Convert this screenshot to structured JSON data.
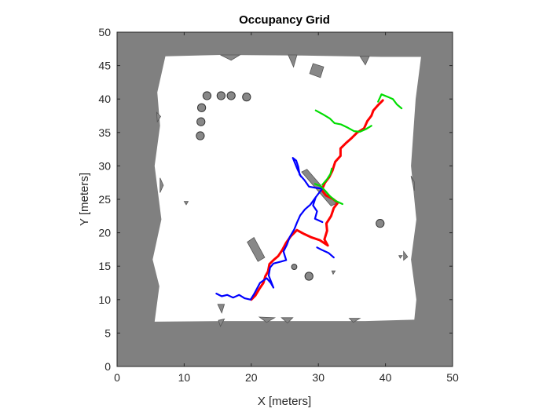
{
  "chart_data": {
    "type": "occupancy-map",
    "title": "Occupancy Grid",
    "xlabel": "X [meters]",
    "ylabel": "Y [meters]",
    "xlim": [
      0,
      50
    ],
    "ylim": [
      0,
      50
    ],
    "xticks": [
      0,
      10,
      20,
      30,
      40,
      50
    ],
    "yticks": [
      0,
      5,
      10,
      15,
      20,
      25,
      30,
      35,
      40,
      45,
      50
    ],
    "colors": {
      "occupied": "#808080",
      "free": "#ffffff",
      "obstacle": "#888888",
      "path_red": "#ff0000",
      "path_blue": "#0000ff",
      "path_green": "#00dd00"
    },
    "free_region": [
      [
        7.2,
        46.4
      ],
      [
        15.5,
        46.6
      ],
      [
        27.5,
        46.5
      ],
      [
        39.5,
        46.3
      ],
      [
        45.3,
        46.3
      ],
      [
        44.5,
        40
      ],
      [
        43.8,
        30
      ],
      [
        44.6,
        22
      ],
      [
        43.8,
        16
      ],
      [
        44.6,
        10
      ],
      [
        44.3,
        7
      ],
      [
        37,
        6.8
      ],
      [
        27,
        6.8
      ],
      [
        15.5,
        6.8
      ],
      [
        5.6,
        6.7
      ],
      [
        6.3,
        12
      ],
      [
        5.3,
        16
      ],
      [
        6.6,
        22
      ],
      [
        5.6,
        30
      ],
      [
        6.4,
        36
      ],
      [
        6.0,
        41
      ],
      [
        7.2,
        46.4
      ]
    ],
    "circular_obstacles": [
      {
        "x": 13.4,
        "y": 40.5,
        "r": 0.6
      },
      {
        "x": 15.5,
        "y": 40.5,
        "r": 0.6
      },
      {
        "x": 17.0,
        "y": 40.5,
        "r": 0.6
      },
      {
        "x": 19.3,
        "y": 40.3,
        "r": 0.6
      },
      {
        "x": 12.6,
        "y": 38.7,
        "r": 0.6
      },
      {
        "x": 12.5,
        "y": 36.6,
        "r": 0.6
      },
      {
        "x": 12.4,
        "y": 34.5,
        "r": 0.6
      },
      {
        "x": 39.2,
        "y": 21.4,
        "r": 0.6
      },
      {
        "x": 28.6,
        "y": 13.5,
        "r": 0.6
      },
      {
        "x": 26.4,
        "y": 14.9,
        "r": 0.4
      }
    ],
    "polygon_obstacles": [
      [
        [
          29.2,
          45.3
        ],
        [
          30.8,
          44.8
        ],
        [
          30.3,
          43.2
        ],
        [
          28.7,
          43.8
        ]
      ],
      [
        [
          19.4,
          18.6
        ],
        [
          20.4,
          19.3
        ],
        [
          22.0,
          16.3
        ],
        [
          21.0,
          15.7
        ]
      ],
      [
        [
          27.5,
          29.1
        ],
        [
          28.3,
          29.5
        ],
        [
          32.7,
          24.4
        ],
        [
          31.9,
          24.0
        ]
      ],
      [
        [
          25.5,
          46.6
        ],
        [
          26.8,
          46.6
        ],
        [
          26.3,
          44.8
        ]
      ],
      [
        [
          15.4,
          46.6
        ],
        [
          18.3,
          46.6
        ],
        [
          17.0,
          45.8
        ]
      ],
      [
        [
          36.2,
          46.4
        ],
        [
          37.6,
          46.4
        ],
        [
          37.0,
          45.1
        ]
      ],
      [
        [
          6.4,
          28.2
        ],
        [
          6.9,
          27.1
        ],
        [
          6.4,
          26.0
        ]
      ],
      [
        [
          43.8,
          28.5
        ],
        [
          44.3,
          27.6
        ],
        [
          44.3,
          26.3
        ]
      ],
      [
        [
          5.9,
          38.0
        ],
        [
          6.5,
          37.4
        ],
        [
          6.0,
          36.6
        ]
      ],
      [
        [
          42.7,
          17.2
        ],
        [
          43.3,
          16.4
        ],
        [
          42.7,
          15.9
        ]
      ],
      [
        [
          21.2,
          7.4
        ],
        [
          23.5,
          7.3
        ],
        [
          22.3,
          6.6
        ]
      ],
      [
        [
          24.5,
          7.3
        ],
        [
          26.2,
          7.3
        ],
        [
          25.4,
          6.5
        ]
      ],
      [
        [
          34.6,
          7.2
        ],
        [
          36.2,
          7.2
        ],
        [
          35.2,
          6.6
        ]
      ],
      [
        [
          15.0,
          9.3
        ],
        [
          16.0,
          9.3
        ],
        [
          15.6,
          8.0
        ]
      ],
      [
        [
          15.1,
          6.9
        ],
        [
          16.0,
          7.1
        ],
        [
          15.4,
          6.0
        ]
      ],
      [
        [
          10.0,
          24.7
        ],
        [
          10.6,
          24.7
        ],
        [
          10.3,
          24.2
        ]
      ],
      [
        [
          32.0,
          14.3
        ],
        [
          32.5,
          14.3
        ],
        [
          32.2,
          13.8
        ]
      ],
      [
        [
          42.0,
          16.6
        ],
        [
          42.5,
          16.6
        ],
        [
          42.2,
          16.2
        ]
      ]
    ],
    "paths": [
      {
        "color": "red",
        "points": [
          [
            20.0,
            10.0
          ],
          [
            20.6,
            10.6
          ],
          [
            21.2,
            11.6
          ],
          [
            21.8,
            12.5
          ],
          [
            22.1,
            13.5
          ],
          [
            22.5,
            14.2
          ],
          [
            22.7,
            15.3
          ],
          [
            23.3,
            15.9
          ],
          [
            24.0,
            16.5
          ],
          [
            24.6,
            17.4
          ],
          [
            25.2,
            18.5
          ],
          [
            25.9,
            19.5
          ],
          [
            26.8,
            20.4
          ],
          [
            27.9,
            19.8
          ],
          [
            29.0,
            19.3
          ],
          [
            30.2,
            18.9
          ],
          [
            31.4,
            18.1
          ],
          [
            30.9,
            19.0
          ],
          [
            31.3,
            20.3
          ],
          [
            31.2,
            21.4
          ],
          [
            31.9,
            22.5
          ],
          [
            32.3,
            23.7
          ],
          [
            32.9,
            24.5
          ],
          [
            32.1,
            25.1
          ],
          [
            31.1,
            25.6
          ],
          [
            30.5,
            26.4
          ],
          [
            31.0,
            27.5
          ],
          [
            31.6,
            28.3
          ],
          [
            32.1,
            29.3
          ],
          [
            32.5,
            30.6
          ],
          [
            33.3,
            31.5
          ],
          [
            33.3,
            32.6
          ],
          [
            34.2,
            33.5
          ],
          [
            35.0,
            34.2
          ],
          [
            35.8,
            35.0
          ],
          [
            36.8,
            35.6
          ],
          [
            37.3,
            36.7
          ],
          [
            37.9,
            37.5
          ],
          [
            38.2,
            38.3
          ],
          [
            38.9,
            39.1
          ],
          [
            39.6,
            39.8
          ]
        ]
      },
      {
        "color": "blue",
        "points": [
          [
            14.8,
            10.9
          ],
          [
            15.6,
            10.5
          ],
          [
            16.4,
            10.7
          ],
          [
            17.3,
            10.3
          ],
          [
            18.2,
            10.7
          ],
          [
            19.0,
            10.2
          ],
          [
            19.9,
            10.0
          ],
          [
            20.4,
            10.8
          ],
          [
            21.3,
            12.5
          ],
          [
            22.3,
            13.2
          ],
          [
            22.9,
            12.5
          ],
          [
            23.3,
            11.8
          ],
          [
            22.6,
            13.6
          ],
          [
            22.8,
            14.8
          ],
          [
            23.3,
            15.4
          ],
          [
            24.5,
            15.7
          ],
          [
            25.2,
            15.9
          ],
          [
            24.8,
            17.2
          ],
          [
            25.3,
            18.2
          ],
          [
            25.7,
            19.3
          ],
          [
            26.4,
            20.5
          ],
          [
            26.8,
            21.5
          ],
          [
            27.3,
            22.6
          ],
          [
            28.0,
            23.5
          ],
          [
            28.8,
            24.2
          ],
          [
            29.6,
            25.3
          ],
          [
            30.2,
            26.1
          ],
          [
            30.6,
            26.6
          ],
          [
            29.7,
            26.7
          ],
          [
            28.6,
            26.9
          ],
          [
            27.9,
            27.9
          ],
          [
            27.2,
            28.7
          ],
          [
            27.0,
            29.9
          ],
          [
            26.7,
            30.8
          ],
          [
            26.2,
            31.2
          ],
          [
            26.8,
            29.7
          ],
          [
            27.4,
            28.4
          ]
        ]
      },
      {
        "color": "blue",
        "points": [
          [
            29.6,
            25.3
          ],
          [
            29.2,
            24.1
          ],
          [
            29.8,
            23.2
          ],
          [
            29.5,
            22.1
          ],
          [
            30.6,
            21.6
          ]
        ]
      },
      {
        "color": "blue",
        "points": [
          [
            29.8,
            17.8
          ],
          [
            30.6,
            17.4
          ],
          [
            31.5,
            17.0
          ],
          [
            32.3,
            16.3
          ]
        ]
      },
      {
        "color": "green",
        "points": [
          [
            29.5,
            27.3
          ],
          [
            30.3,
            27.0
          ],
          [
            31.0,
            26.3
          ],
          [
            31.7,
            25.5
          ],
          [
            32.5,
            24.8
          ],
          [
            33.6,
            24.3
          ]
        ]
      },
      {
        "color": "green",
        "points": [
          [
            30.6,
            27.2
          ],
          [
            31.3,
            28.0
          ],
          [
            31.8,
            28.8
          ],
          [
            32.0,
            29.6
          ]
        ]
      },
      {
        "color": "green",
        "points": [
          [
            29.6,
            38.3
          ],
          [
            30.7,
            37.7
          ],
          [
            31.7,
            37.1
          ],
          [
            32.4,
            36.4
          ],
          [
            33.4,
            36.2
          ],
          [
            34.4,
            35.7
          ],
          [
            35.3,
            35.2
          ],
          [
            36.2,
            35.1
          ],
          [
            37.1,
            35.5
          ],
          [
            37.9,
            36.0
          ]
        ]
      },
      {
        "color": "green",
        "points": [
          [
            38.9,
            39.6
          ],
          [
            39.4,
            40.7
          ],
          [
            40.4,
            40.3
          ],
          [
            41.1,
            40.0
          ],
          [
            41.7,
            39.2
          ],
          [
            42.4,
            38.6
          ]
        ]
      }
    ]
  }
}
